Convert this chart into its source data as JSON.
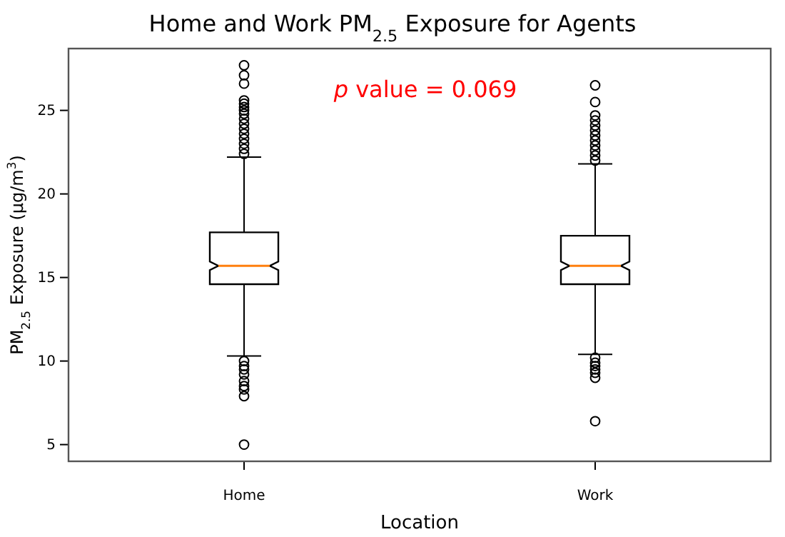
{
  "chart_data": {
    "type": "box",
    "title": "Home and Work PM$_{2.5}$ Exposure for Agents",
    "xlabel": "Location",
    "ylabel": "PM$_{2.5}$ Exposure (µg/m$^{3}$)",
    "categories": [
      "Home",
      "Work"
    ],
    "boxes": [
      {
        "low": 10.3,
        "q1": 14.6,
        "median": 15.7,
        "q3": 17.7,
        "high": 22.2,
        "outliers": [
          27.7,
          27.1,
          26.6,
          25.6,
          25.4,
          25.2,
          25.0,
          24.8,
          24.5,
          24.2,
          23.9,
          23.6,
          23.3,
          23.0,
          22.7,
          22.4,
          10.0,
          9.7,
          9.5,
          9.2,
          8.8,
          8.5,
          8.3,
          7.9,
          5.0
        ]
      },
      {
        "low": 10.4,
        "q1": 14.6,
        "median": 15.7,
        "q3": 17.5,
        "high": 21.8,
        "outliers": [
          26.5,
          25.5,
          24.7,
          24.4,
          24.1,
          23.8,
          23.5,
          23.2,
          22.9,
          22.6,
          22.3,
          22.0,
          10.2,
          9.9,
          9.7,
          9.5,
          9.3,
          9.0,
          6.4
        ]
      }
    ],
    "ylim": [
      4.0,
      28.7
    ],
    "yticks": [
      5,
      10,
      15,
      20,
      25
    ],
    "grid": false,
    "color": "#000000",
    "annotations": [
      "p value = 0.069"
    ]
  }
}
